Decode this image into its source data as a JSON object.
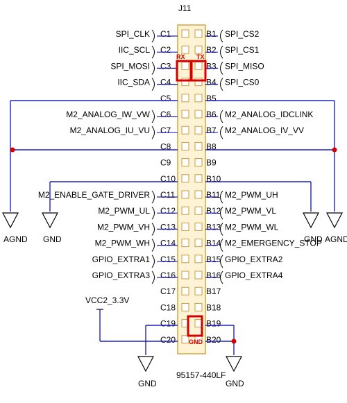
{
  "connector": {
    "ref": "J11",
    "part": "95157-440LF"
  },
  "left_pins": [
    {
      "pin": "C1",
      "net": "SPI_CLK"
    },
    {
      "pin": "C2",
      "net": "IIC_SCL"
    },
    {
      "pin": "C3",
      "net": "SPI_MOSI"
    },
    {
      "pin": "C4",
      "net": "IIC_SDA"
    },
    {
      "pin": "C5",
      "net": ""
    },
    {
      "pin": "C6",
      "net": "M2_ANALOG_IW_VW"
    },
    {
      "pin": "C7",
      "net": "M2_ANALOG_IU_VU"
    },
    {
      "pin": "C8",
      "net": ""
    },
    {
      "pin": "C9",
      "net": ""
    },
    {
      "pin": "C10",
      "net": ""
    },
    {
      "pin": "C11",
      "net": "M2_ENABLE_GATE_DRIVER"
    },
    {
      "pin": "C12",
      "net": "M2_PWM_UL"
    },
    {
      "pin": "C13",
      "net": "M2_PWM_VH"
    },
    {
      "pin": "C14",
      "net": "M2_PWM_WH"
    },
    {
      "pin": "C15",
      "net": "GPIO_EXTRA1"
    },
    {
      "pin": "C16",
      "net": "GPIO_EXTRA3"
    },
    {
      "pin": "C17",
      "net": ""
    },
    {
      "pin": "C18",
      "net": ""
    },
    {
      "pin": "C19",
      "net": ""
    },
    {
      "pin": "C20",
      "net": ""
    }
  ],
  "right_pins": [
    {
      "pin": "B1",
      "net": "SPI_CS2"
    },
    {
      "pin": "B2",
      "net": "SPI_CS1"
    },
    {
      "pin": "B3",
      "net": "SPI_MISO"
    },
    {
      "pin": "B4",
      "net": "SPI_CS0"
    },
    {
      "pin": "B5",
      "net": ""
    },
    {
      "pin": "B6",
      "net": "M2_ANALOG_IDCLINK"
    },
    {
      "pin": "B7",
      "net": "M2_ANALOG_IV_VV"
    },
    {
      "pin": "B8",
      "net": ""
    },
    {
      "pin": "B9",
      "net": ""
    },
    {
      "pin": "B10",
      "net": ""
    },
    {
      "pin": "B11",
      "net": "M2_PWM_UH"
    },
    {
      "pin": "B12",
      "net": "M2_PWM_VL"
    },
    {
      "pin": "B13",
      "net": "M2_PWM_WL"
    },
    {
      "pin": "B14",
      "net": "M2_EMERGENCY_STOP"
    },
    {
      "pin": "B15",
      "net": "GPIO_EXTRA2"
    },
    {
      "pin": "B16",
      "net": "GPIO_EXTRA4"
    },
    {
      "pin": "B17",
      "net": ""
    },
    {
      "pin": "B18",
      "net": ""
    },
    {
      "pin": "B19",
      "net": ""
    },
    {
      "pin": "B20",
      "net": ""
    }
  ],
  "markers": {
    "rx": "RX",
    "tx": "TX",
    "gnd": "GND"
  },
  "power": {
    "agnd_left": "AGND",
    "gnd_left": "GND",
    "gnd_right": "GND",
    "agnd_right": "AGND",
    "vcc": "VCC2_3.3V",
    "gnd_bottom_left": "GND",
    "gnd_bottom_right": "GND"
  },
  "colors": {
    "wire": "#2020c0",
    "header_fill": "#fff3d6",
    "header_border": "#d9a441",
    "marker": "#d40000",
    "junction": "#d40000"
  }
}
